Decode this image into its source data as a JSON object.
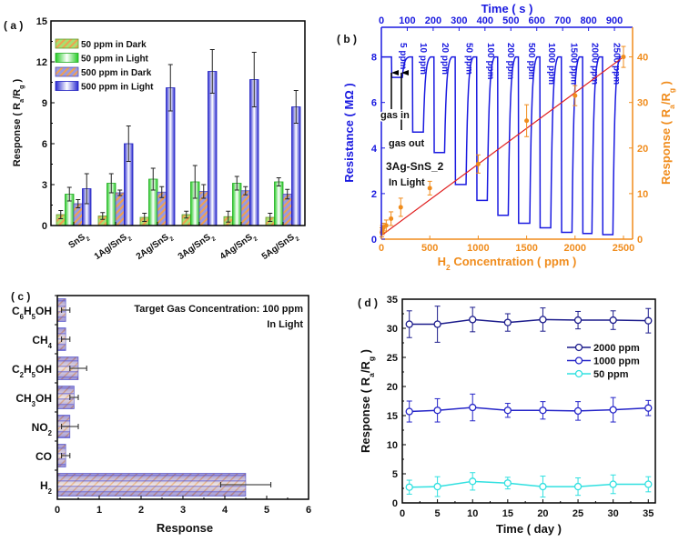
{
  "chart_data": [
    {
      "panel_label": "( a )",
      "type": "bar",
      "ylabel": "Response ( R_a/R_g )",
      "ylim": [
        0,
        15
      ],
      "yticks": [
        0,
        3,
        6,
        9,
        12,
        15
      ],
      "legend_position": "top-left",
      "categories": [
        "SnS_2",
        "1Ag/SnS_2",
        "2Ag/SnS_2",
        "3Ag/SnS_2",
        "4Ag/SnS_2",
        "5Ag/SnS_2"
      ],
      "series": [
        {
          "name": "50 ppm in Dark",
          "values": [
            0.8,
            0.7,
            0.6,
            0.8,
            0.65,
            0.6
          ],
          "errors": [
            0.3,
            0.25,
            0.3,
            0.25,
            0.4,
            0.3
          ],
          "color": "#80d040",
          "hatch": "#f0a050"
        },
        {
          "name": "50 ppm in Light",
          "values": [
            2.3,
            3.1,
            3.4,
            3.2,
            3.1,
            3.2
          ],
          "errors": [
            0.5,
            0.7,
            0.8,
            1.2,
            0.5,
            0.3
          ],
          "color": "#22cc22"
        },
        {
          "name": "500 ppm in Dark",
          "values": [
            1.6,
            2.4,
            2.45,
            2.5,
            2.55,
            2.3
          ],
          "errors": [
            0.3,
            0.2,
            0.4,
            0.5,
            0.3,
            0.35
          ],
          "color": "#7070d0",
          "hatch": "#f0a050"
        },
        {
          "name": "500 ppm in Light",
          "values": [
            2.7,
            6.0,
            10.1,
            11.3,
            10.7,
            8.7
          ],
          "errors": [
            1.1,
            1.3,
            1.7,
            1.6,
            2.0,
            1.2
          ],
          "color": "#2828d0"
        }
      ]
    },
    {
      "panel_label": "( b )",
      "type": "line",
      "title": "Time ( s )",
      "xlabel": "H_2 Concentration ( ppm )",
      "ylabel": "Resistance ( MΩ )",
      "ylabel_right": "Response ( R_a/R_g )",
      "xlim": [
        0,
        2594
      ],
      "xticks": [
        0,
        500,
        1000,
        1500,
        2000,
        2500
      ],
      "x_top_lim": [
        0,
        970
      ],
      "x_top_ticks": [
        0,
        100,
        200,
        300,
        400,
        500,
        600,
        700,
        800,
        900
      ],
      "ylim": [
        0,
        9.3
      ],
      "yticks": [
        0,
        2,
        4,
        6,
        8
      ],
      "ylim_right": [
        0,
        46.5
      ],
      "yticks_right": [
        0,
        10,
        20,
        30,
        40
      ],
      "colors": {
        "resistance": "#1a1ae0",
        "response": "#f08c1c",
        "fit": "#e02020"
      },
      "resistance_baseline": 8,
      "resistance_steps": [
        {
          "label": "5 ppm",
          "t_in": 39,
          "t_out": 80,
          "min": 7.1,
          "label_t": 63
        },
        {
          "label": "10 ppm",
          "t_in": 120,
          "t_out": 161,
          "min": 4.7,
          "label_t": 141
        },
        {
          "label": "20 ppm",
          "t_in": 203,
          "t_out": 243,
          "min": 3.8,
          "label_t": 225
        },
        {
          "label": "50 ppm",
          "t_in": 285,
          "t_out": 326,
          "min": 2.4,
          "label_t": 318
        },
        {
          "label": "100 ppm",
          "t_in": 368,
          "t_out": 408,
          "min": 1.7,
          "label_t": 400
        },
        {
          "label": "200 ppm",
          "t_in": 449,
          "t_out": 489,
          "min": 1.05,
          "label_t": 478
        },
        {
          "label": "500 ppm",
          "t_in": 529,
          "t_out": 572,
          "min": 0.7,
          "label_t": 559
        },
        {
          "label": "1000 ppm",
          "t_in": 612,
          "t_out": 653,
          "min": 0.5,
          "label_t": 636
        },
        {
          "label": "1500 ppm",
          "t_in": 695,
          "t_out": 735,
          "min": 0.3,
          "label_t": 722
        },
        {
          "label": "2000 ppm",
          "t_in": 777,
          "t_out": 812,
          "min": 0.25,
          "label_t": 803
        },
        {
          "label": "2500 ppm",
          "t_in": 854,
          "t_out": 893,
          "min": 0.2,
          "label_t": 887
        }
      ],
      "response_points": {
        "x": [
          5,
          10,
          20,
          50,
          100,
          200,
          500,
          1000,
          1500,
          2000,
          2500
        ],
        "y": [
          1.5,
          2.0,
          2.5,
          3.0,
          4.5,
          7.0,
          11.2,
          16.5,
          26.0,
          31.5,
          40.0
        ],
        "errors": [
          1.0,
          1.0,
          1.0,
          1.2,
          1.5,
          2.0,
          1.5,
          2.0,
          3.5,
          2.2,
          2.3
        ]
      },
      "fit_line": {
        "x": [
          0,
          2500
        ],
        "y": [
          0.8,
          40.0
        ]
      },
      "annotations": {
        "gas_in": "gas in",
        "gas_out": "gas out",
        "sample": "3Ag-SnS_2",
        "condition": "In Light"
      }
    },
    {
      "panel_label": "( c )",
      "type": "bar",
      "orientation": "horizontal",
      "xlabel": "Response",
      "xlim": [
        0,
        6
      ],
      "xticks": [
        0,
        1,
        2,
        3,
        4,
        5,
        6
      ],
      "categories": [
        "C_6H_5OH",
        "CH_4",
        "C_2H_5OH",
        "CH_3OH",
        "NO_2",
        "CO",
        "H_2"
      ],
      "values": [
        0.2,
        0.2,
        0.5,
        0.4,
        0.3,
        0.2,
        4.5
      ],
      "errors": [
        0.1,
        0.1,
        0.2,
        0.1,
        0.2,
        0.1,
        0.6
      ],
      "annotation": [
        "Target Gas Concentration: 100 ppm",
        "In Light"
      ]
    },
    {
      "panel_label": "( d )",
      "type": "line",
      "xlabel": "Time ( day )",
      "ylabel": "Response ( R_a/R_g )",
      "xlim": [
        0,
        36
      ],
      "xticks": [
        0,
        5,
        10,
        15,
        20,
        25,
        30,
        35
      ],
      "ylim": [
        0,
        35
      ],
      "yticks": [
        0,
        5,
        10,
        15,
        20,
        25,
        30,
        35
      ],
      "legend_position": "upper-right",
      "x": [
        1,
        5,
        10,
        15,
        20,
        25,
        30,
        35
      ],
      "series": [
        {
          "name": "2000 ppm",
          "color": "#1c1c8c",
          "values": [
            30.7,
            30.7,
            31.5,
            31.0,
            31.5,
            31.4,
            31.4,
            31.3
          ],
          "errors": [
            2.3,
            3.1,
            2.1,
            1.5,
            2.0,
            1.5,
            1.6,
            2.1
          ]
        },
        {
          "name": "1000 ppm",
          "color": "#2424c8",
          "values": [
            15.7,
            15.9,
            16.4,
            15.9,
            15.9,
            15.8,
            16.0,
            16.3
          ],
          "errors": [
            1.8,
            2.0,
            2.3,
            1.2,
            1.5,
            1.6,
            2.1,
            1.3
          ]
        },
        {
          "name": "50 ppm",
          "color": "#30e0e0",
          "values": [
            2.7,
            2.8,
            3.7,
            3.4,
            2.8,
            2.8,
            3.2,
            3.2
          ],
          "errors": [
            1.2,
            1.7,
            1.5,
            1.0,
            1.8,
            1.5,
            1.6,
            1.3
          ]
        }
      ]
    }
  ]
}
